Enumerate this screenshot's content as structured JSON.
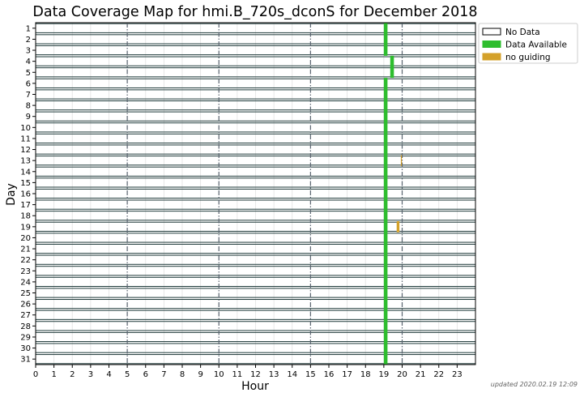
{
  "chart_data": {
    "type": "coverage-map",
    "title": "Data Coverage Map for hmi.B_720s_dconS for December 2018",
    "xlabel": "Hour",
    "ylabel": "Day",
    "xlim": [
      0,
      24
    ],
    "x_ticks": [
      0,
      1,
      2,
      3,
      4,
      5,
      6,
      7,
      8,
      9,
      10,
      11,
      12,
      13,
      14,
      15,
      16,
      17,
      18,
      19,
      20,
      21,
      22,
      23
    ],
    "y_ticks": [
      1,
      2,
      3,
      4,
      5,
      6,
      7,
      8,
      9,
      10,
      11,
      12,
      13,
      14,
      15,
      16,
      17,
      18,
      19,
      20,
      21,
      22,
      23,
      24,
      25,
      26,
      27,
      28,
      29,
      30,
      31
    ],
    "grid": {
      "major_dashdot_hours": [
        5,
        10,
        15,
        20
      ],
      "minor_every_hour": true
    },
    "legend": {
      "position": "top-right-outside",
      "entries": [
        {
          "label": "No Data",
          "color": "#ffffff"
        },
        {
          "label": "Data Available",
          "color": "#2ebd2e"
        },
        {
          "label": "no guiding",
          "color": "#d4a12a"
        }
      ]
    },
    "series": [
      {
        "name": "Data Available",
        "color": "#2ebd2e",
        "intervals": [
          {
            "days": [
              1,
              3
            ],
            "start": 19.0,
            "end": 19.2
          },
          {
            "days": [
              4,
              5
            ],
            "start": 19.35,
            "end": 19.55
          },
          {
            "days": [
              6,
              31
            ],
            "start": 19.0,
            "end": 19.2
          }
        ]
      },
      {
        "name": "no guiding",
        "color": "#d4a12a",
        "intervals": [
          {
            "days": [
              13,
              13
            ],
            "start": 19.93,
            "end": 19.98
          },
          {
            "days": [
              19,
              19
            ],
            "start": 19.7,
            "end": 19.85
          }
        ]
      }
    ]
  },
  "footer": {
    "updated": "updated 2020.02.19 12:09"
  }
}
